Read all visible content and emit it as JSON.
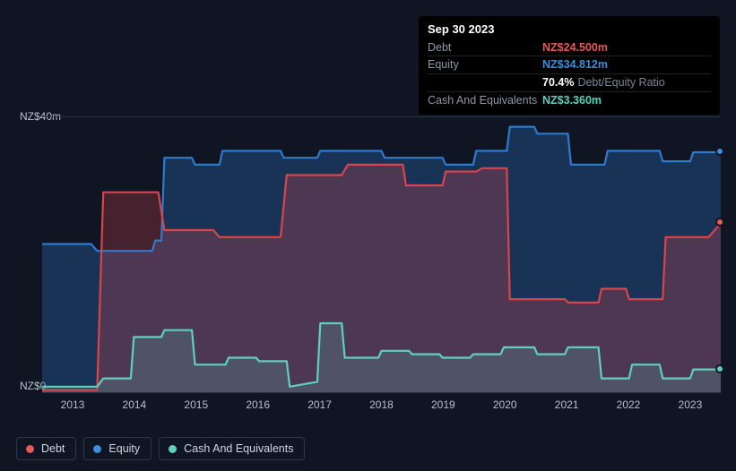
{
  "tooltip": {
    "date": "Sep 30 2023",
    "rows": {
      "debt": {
        "label": "Debt",
        "value": "NZ$24.500m"
      },
      "equity": {
        "label": "Equity",
        "value": "NZ$34.812m"
      },
      "ratio": {
        "pct": "70.4%",
        "label": "Debt/Equity Ratio"
      },
      "cash": {
        "label": "Cash And Equivalents",
        "value": "NZ$3.360m"
      }
    }
  },
  "chart": {
    "type": "area",
    "background_color": "#0f1523",
    "grid_color": "#2a3244",
    "y_axis": {
      "min": 0,
      "max": 40,
      "ticks": [
        {
          "v": 40,
          "label": "NZ$40m"
        },
        {
          "v": 0,
          "label": "NZ$0"
        }
      ]
    },
    "x_axis": {
      "labels": [
        "2013",
        "2014",
        "2015",
        "2016",
        "2017",
        "2018",
        "2019",
        "2020",
        "2021",
        "2022",
        "2023"
      ],
      "min_year": 2012.8,
      "max_year": 2023.9
    },
    "series": {
      "debt": {
        "name": "Debt",
        "stroke": "#d9454a",
        "fill": "#d9454a",
        "fill_opacity": 0.28,
        "stroke_width": 2.2,
        "points": [
          [
            2012.8,
            0.3
          ],
          [
            2013.6,
            0.3
          ],
          [
            2013.7,
            0.3
          ],
          [
            2013.8,
            29
          ],
          [
            2014.7,
            29
          ],
          [
            2014.8,
            23.5
          ],
          [
            2015.6,
            23.5
          ],
          [
            2015.7,
            22.5
          ],
          [
            2016.7,
            22.5
          ],
          [
            2016.8,
            31.5
          ],
          [
            2017.7,
            31.5
          ],
          [
            2017.8,
            33
          ],
          [
            2018.7,
            33
          ],
          [
            2018.75,
            30
          ],
          [
            2019.35,
            30
          ],
          [
            2019.4,
            32
          ],
          [
            2019.9,
            32
          ],
          [
            2020.0,
            32.5
          ],
          [
            2020.4,
            32.5
          ],
          [
            2020.45,
            13.5
          ],
          [
            2021.35,
            13.5
          ],
          [
            2021.4,
            13
          ],
          [
            2021.9,
            13
          ],
          [
            2021.95,
            15
          ],
          [
            2022.35,
            15
          ],
          [
            2022.4,
            13.5
          ],
          [
            2022.95,
            13.5
          ],
          [
            2023.0,
            22.5
          ],
          [
            2023.7,
            22.5
          ],
          [
            2023.9,
            24.5
          ]
        ]
      },
      "equity": {
        "name": "Equity",
        "stroke": "#2f7acc",
        "fill": "#2f7acc",
        "fill_opacity": 0.3,
        "stroke_width": 2.2,
        "points": [
          [
            2012.8,
            21.5
          ],
          [
            2013.6,
            21.5
          ],
          [
            2013.7,
            20.5
          ],
          [
            2014.6,
            20.5
          ],
          [
            2014.65,
            22
          ],
          [
            2014.75,
            22
          ],
          [
            2014.8,
            34
          ],
          [
            2015.25,
            34
          ],
          [
            2015.3,
            33
          ],
          [
            2015.7,
            33
          ],
          [
            2015.75,
            35
          ],
          [
            2016.7,
            35
          ],
          [
            2016.75,
            34
          ],
          [
            2017.3,
            34
          ],
          [
            2017.35,
            35
          ],
          [
            2018.35,
            35
          ],
          [
            2018.4,
            34
          ],
          [
            2019.35,
            34
          ],
          [
            2019.4,
            33
          ],
          [
            2019.85,
            33
          ],
          [
            2019.9,
            35
          ],
          [
            2020.4,
            35
          ],
          [
            2020.45,
            38.5
          ],
          [
            2020.85,
            38.5
          ],
          [
            2020.9,
            37.5
          ],
          [
            2021.4,
            37.5
          ],
          [
            2021.45,
            33
          ],
          [
            2022.0,
            33
          ],
          [
            2022.05,
            35
          ],
          [
            2022.9,
            35
          ],
          [
            2022.95,
            33.5
          ],
          [
            2023.4,
            33.5
          ],
          [
            2023.45,
            34.8
          ],
          [
            2023.9,
            34.8
          ]
        ]
      },
      "cash": {
        "name": "Cash And Equivalents",
        "stroke": "#5fd1bb",
        "fill": "#5fd1bb",
        "fill_opacity": 0.18,
        "stroke_width": 2.2,
        "points": [
          [
            2012.8,
            0.8
          ],
          [
            2013.7,
            0.8
          ],
          [
            2013.8,
            2
          ],
          [
            2014.25,
            2
          ],
          [
            2014.3,
            8
          ],
          [
            2014.75,
            8
          ],
          [
            2014.8,
            9
          ],
          [
            2015.25,
            9
          ],
          [
            2015.3,
            4
          ],
          [
            2015.8,
            4
          ],
          [
            2015.85,
            5
          ],
          [
            2016.3,
            5
          ],
          [
            2016.35,
            4.5
          ],
          [
            2016.8,
            4.5
          ],
          [
            2016.85,
            0.8
          ],
          [
            2017.3,
            1.5
          ],
          [
            2017.35,
            10
          ],
          [
            2017.7,
            10
          ],
          [
            2017.75,
            5
          ],
          [
            2018.3,
            5
          ],
          [
            2018.35,
            6
          ],
          [
            2018.8,
            6
          ],
          [
            2018.85,
            5.5
          ],
          [
            2019.3,
            5.5
          ],
          [
            2019.35,
            5
          ],
          [
            2019.8,
            5
          ],
          [
            2019.85,
            5.5
          ],
          [
            2020.3,
            5.5
          ],
          [
            2020.35,
            6.5
          ],
          [
            2020.85,
            6.5
          ],
          [
            2020.9,
            5.5
          ],
          [
            2021.35,
            5.5
          ],
          [
            2021.4,
            6.5
          ],
          [
            2021.9,
            6.5
          ],
          [
            2021.95,
            2
          ],
          [
            2022.4,
            2
          ],
          [
            2022.45,
            4
          ],
          [
            2022.9,
            4
          ],
          [
            2022.95,
            2
          ],
          [
            2023.4,
            2
          ],
          [
            2023.45,
            3.3
          ],
          [
            2023.9,
            3.3
          ]
        ]
      }
    },
    "end_dots": {
      "equity": {
        "color": "#3a8fde",
        "y": 34.8
      },
      "debt": {
        "color": "#e75a5a",
        "y": 24.5
      },
      "cash": {
        "color": "#5fd1bb",
        "y": 3.3
      }
    }
  },
  "legend": [
    {
      "key": "debt",
      "label": "Debt",
      "color": "#e75a5a"
    },
    {
      "key": "equity",
      "label": "Equity",
      "color": "#3a8fde"
    },
    {
      "key": "cash",
      "label": "Cash And Equivalents",
      "color": "#5fd1bb"
    }
  ]
}
